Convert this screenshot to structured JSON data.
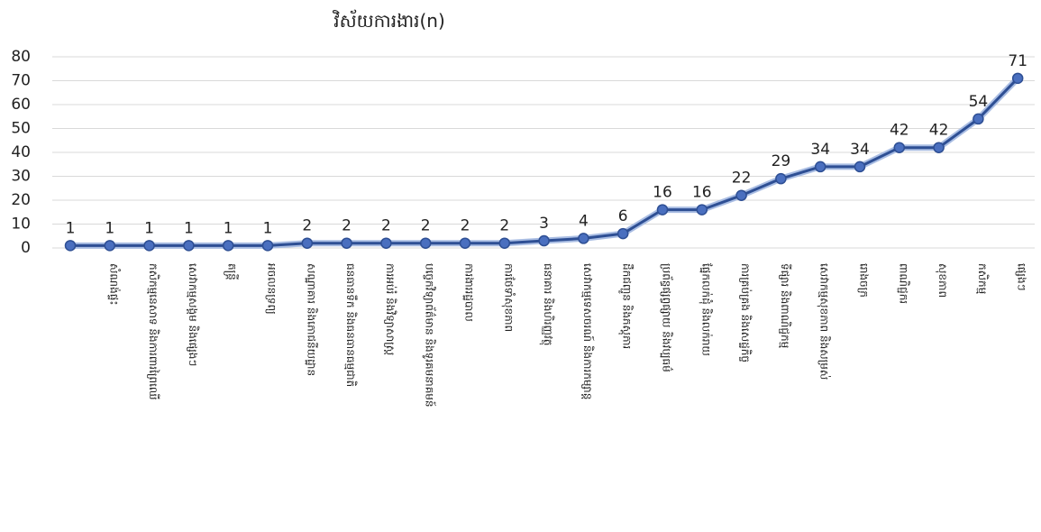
{
  "chart_data": {
    "type": "line",
    "title": "វិស័យការងារ(n)",
    "categories": [
      null,
      "សំណង់ផ្ទះ",
      "កសិកម្មនេសាទ និងការពារព្រៃឈើ",
      "សេវាកម្មសង្គម និងផ្សេងៗ",
      "តន្ត្រី",
      "អចលនទ្រព្យ",
      "សណ្ឋាគារ និងភោជនីយដ្ឋាន",
      "ធនធានទឹក និងធនធានធម្មជាតិ",
      "ការអប់រំ និងវិទ្យាសាស្ត្រ",
      "បច្ចេកវិទ្យាព័ត៌មាន និងទូរគមនាគមន៍",
      "ការងាររដ្ឋបាល",
      "ការថែទាំសុខភាព",
      "ធនាគារ និងហិរញ្ញវត្ថុ",
      "សេវាកម្មទេសចរណ៍ និងការកម្សាន្ត",
      "ដឹកជញ្ជូន និងភស្តុភារ",
      "ប្រព័ន្ធផ្សព្វផ្សាយ និងវប្បធម៌",
      "ផ្នែកលក់ដុំ និងលក់រាយ",
      "ការគ្រប់គ្រង និងសេដ្ឋកិច្ច",
      "ទីផ្សារ និងពាណិជ្ជកម្ម",
      "សេវាកម្មសុខភាព និងសម្រស់",
      "រោងចក្រ",
      "ពាណិជ្ជករ",
      "សុខភាព",
      "កសិកម្ម",
      "ផ្សេងៗ"
    ],
    "series": [
      {
        "name": "n",
        "color": "#2e4f94",
        "values": [
          1,
          1,
          1,
          1,
          1,
          1,
          2,
          2,
          2,
          2,
          2,
          2,
          3,
          4,
          6,
          16,
          16,
          22,
          29,
          34,
          34,
          42,
          42,
          54,
          71
        ]
      }
    ],
    "ylim": [
      0,
      80
    ],
    "yticks": [
      0,
      10,
      20,
      30,
      40,
      50,
      60,
      70,
      80
    ],
    "grid": true,
    "data_labels": true
  }
}
